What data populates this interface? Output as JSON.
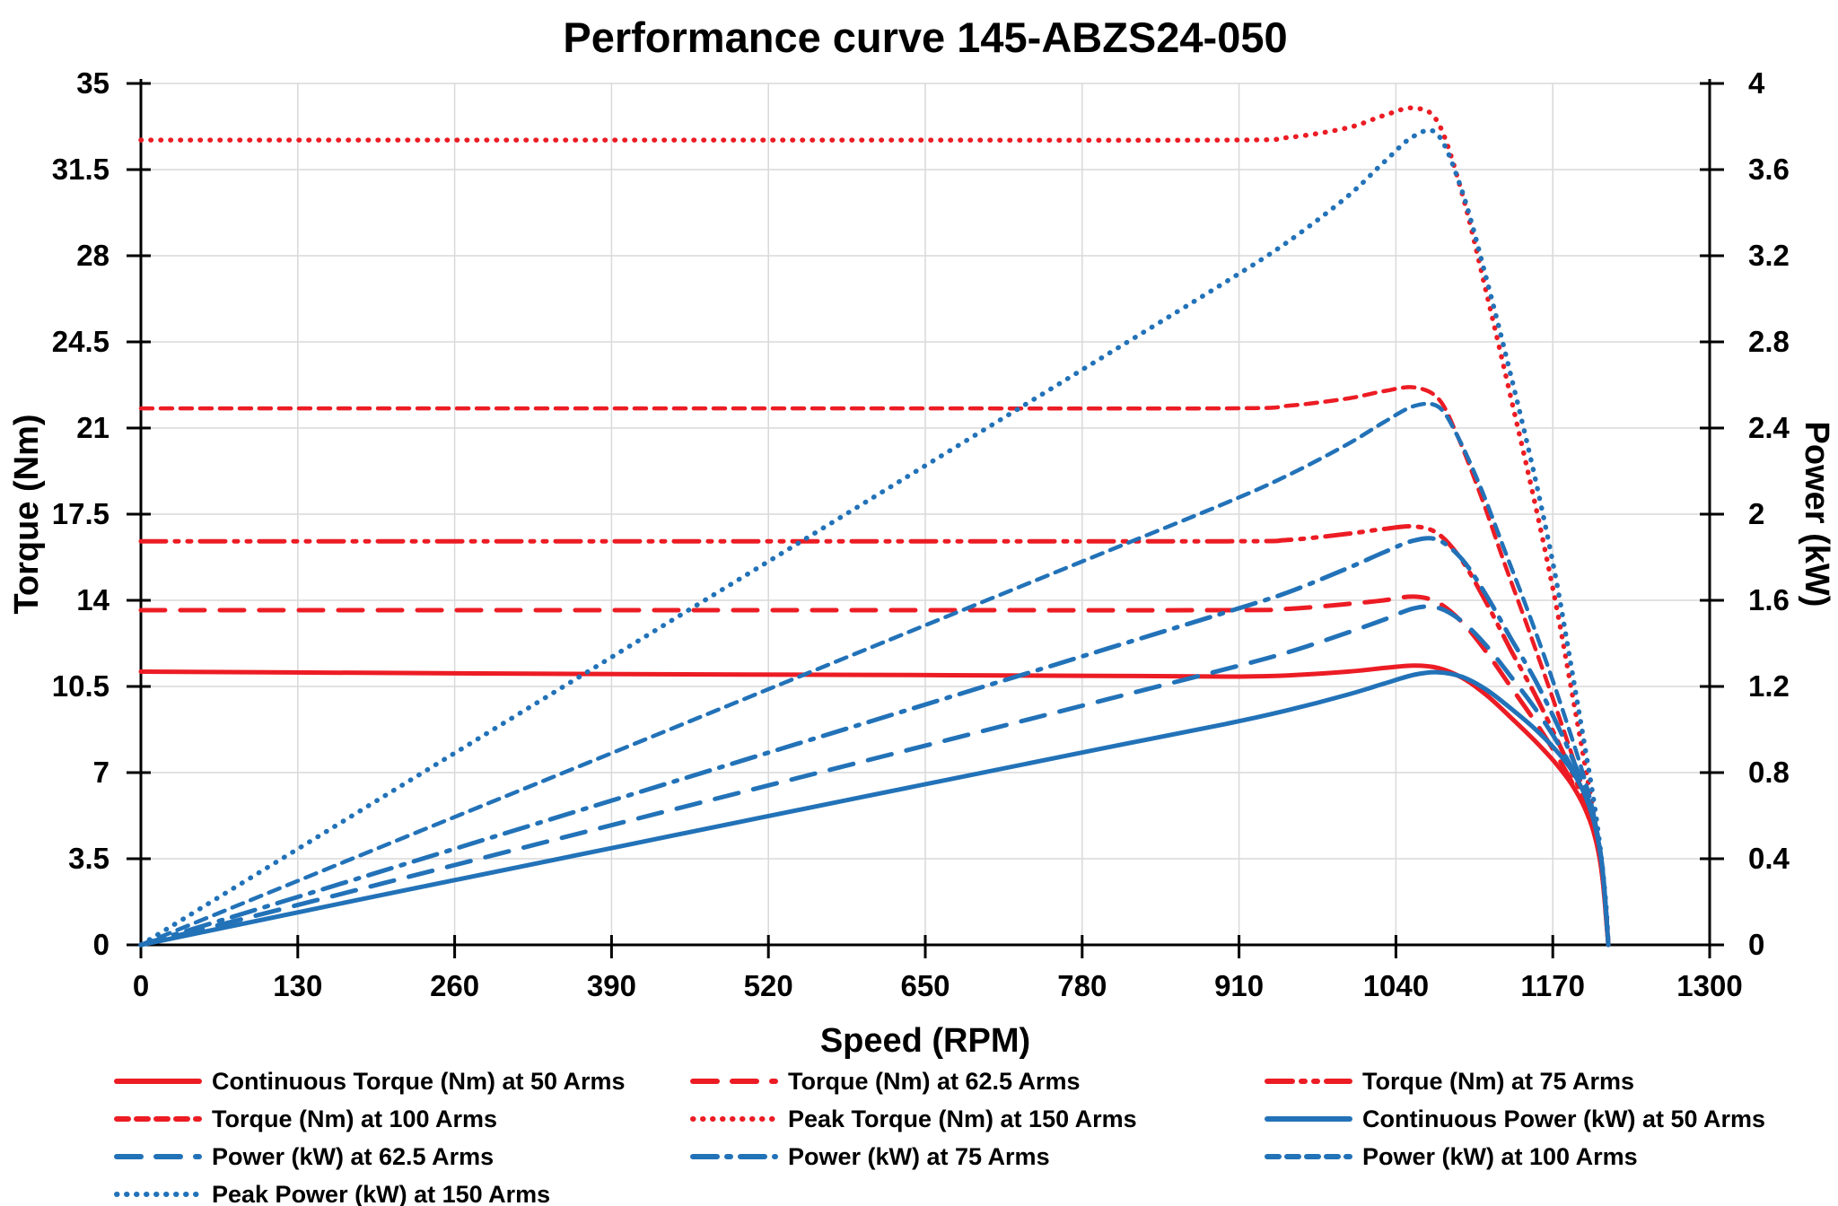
{
  "title": "Performance curve 145-ABZS24-050",
  "x_axis": {
    "label": "Speed (RPM)",
    "ticks": [
      "0",
      "130",
      "260",
      "390",
      "520",
      "650",
      "780",
      "910",
      "1040",
      "1170",
      "1300"
    ]
  },
  "y_left": {
    "label": "Torque (Nm)",
    "ticks": [
      "0",
      "3.5",
      "7",
      "10.5",
      "14",
      "17.5",
      "21",
      "24.5",
      "28",
      "31.5",
      "35"
    ]
  },
  "y_right": {
    "label": "Power (kW)",
    "ticks": [
      "0",
      "0.4",
      "0.8",
      "1.2",
      "1.6",
      "2",
      "2.4",
      "2.8",
      "3.2",
      "3.6",
      "4"
    ]
  },
  "colors": {
    "red": "#ec1c24",
    "blue": "#2272b8",
    "grid": "#d9d9d9",
    "axis": "#000000",
    "text": "#000000",
    "background": "#ffffff"
  },
  "chart_data": {
    "type": "line",
    "title": "Performance curve 145-ABZS24-050",
    "xlabel": "Speed (RPM)",
    "ylabel_left": "Torque (Nm)",
    "ylabel_right": "Power (kW)",
    "xlim": [
      0,
      1300
    ],
    "ylim_left": [
      0,
      35
    ],
    "ylim_right": [
      0,
      4
    ],
    "grid": true,
    "legend_position": "bottom",
    "series": [
      {
        "id": "peak-torque-150",
        "name": "Peak Torque (Nm) at 150 Arms",
        "axis": "left",
        "color": "red",
        "dash": "dot",
        "legend_pos": [
          1,
          1
        ],
        "points": [
          [
            0,
            32.7
          ],
          [
            300,
            32.7
          ],
          [
            600,
            32.7
          ],
          [
            900,
            32.7
          ],
          [
            950,
            32.8
          ],
          [
            1000,
            33.2
          ],
          [
            1030,
            33.7
          ],
          [
            1055,
            34.0
          ],
          [
            1075,
            33.4
          ],
          [
            1095,
            30.5
          ],
          [
            1115,
            26.5
          ],
          [
            1135,
            22.3
          ],
          [
            1155,
            18.0
          ],
          [
            1172,
            14.0
          ],
          [
            1185,
            10.5
          ],
          [
            1196,
            7.5
          ],
          [
            1204,
            5.3
          ],
          [
            1210,
            3.3
          ],
          [
            1214,
            1.5
          ],
          [
            1216,
            0
          ]
        ]
      },
      {
        "id": "torque-100",
        "name": "Torque (Nm) at 100 Arms",
        "axis": "left",
        "color": "red",
        "dash": "short-dash",
        "legend_pos": [
          1,
          0
        ],
        "points": [
          [
            0,
            21.8
          ],
          [
            300,
            21.8
          ],
          [
            600,
            21.8
          ],
          [
            900,
            21.8
          ],
          [
            950,
            21.9
          ],
          [
            1000,
            22.2
          ],
          [
            1030,
            22.5
          ],
          [
            1055,
            22.65
          ],
          [
            1075,
            22.2
          ],
          [
            1090,
            20.8
          ],
          [
            1110,
            18.3
          ],
          [
            1130,
            15.5
          ],
          [
            1150,
            12.8
          ],
          [
            1168,
            10.3
          ],
          [
            1184,
            8.0
          ],
          [
            1196,
            6.2
          ],
          [
            1204,
            4.8
          ],
          [
            1210,
            3.2
          ],
          [
            1214,
            1.4
          ],
          [
            1216,
            0
          ]
        ]
      },
      {
        "id": "torque-75",
        "name": "Torque (Nm) at 75 Arms",
        "axis": "left",
        "color": "red",
        "dash": "dash-dot-dot",
        "legend_pos": [
          0,
          2
        ],
        "points": [
          [
            0,
            16.4
          ],
          [
            300,
            16.4
          ],
          [
            600,
            16.4
          ],
          [
            900,
            16.4
          ],
          [
            950,
            16.45
          ],
          [
            1000,
            16.7
          ],
          [
            1030,
            16.9
          ],
          [
            1055,
            17.0
          ],
          [
            1075,
            16.7
          ],
          [
            1095,
            15.6
          ],
          [
            1115,
            13.9
          ],
          [
            1135,
            12.0
          ],
          [
            1155,
            10.2
          ],
          [
            1172,
            8.5
          ],
          [
            1186,
            7.0
          ],
          [
            1198,
            5.6
          ],
          [
            1206,
            4.3
          ],
          [
            1211,
            2.9
          ],
          [
            1214,
            1.3
          ],
          [
            1216,
            0
          ]
        ]
      },
      {
        "id": "torque-62-5",
        "name": "Torque (Nm) at 62.5 Arms",
        "axis": "left",
        "color": "red",
        "dash": "long-dash",
        "legend_pos": [
          0,
          1
        ],
        "points": [
          [
            0,
            13.6
          ],
          [
            300,
            13.6
          ],
          [
            600,
            13.6
          ],
          [
            900,
            13.6
          ],
          [
            950,
            13.65
          ],
          [
            1000,
            13.85
          ],
          [
            1030,
            14.0
          ],
          [
            1055,
            14.15
          ],
          [
            1075,
            13.9
          ],
          [
            1095,
            13.1
          ],
          [
            1115,
            11.9
          ],
          [
            1135,
            10.5
          ],
          [
            1155,
            9.1
          ],
          [
            1172,
            7.8
          ],
          [
            1186,
            6.6
          ],
          [
            1198,
            5.4
          ],
          [
            1206,
            4.2
          ],
          [
            1211,
            2.8
          ],
          [
            1214,
            1.2
          ],
          [
            1216,
            0
          ]
        ]
      },
      {
        "id": "continuous-torque-50",
        "name": "Continuous Torque (Nm) at 50 Arms",
        "axis": "left",
        "color": "red",
        "dash": "solid",
        "legend_pos": [
          0,
          0
        ],
        "points": [
          [
            0,
            11.1
          ],
          [
            200,
            11.05
          ],
          [
            400,
            11.0
          ],
          [
            600,
            10.97
          ],
          [
            800,
            10.93
          ],
          [
            900,
            10.9
          ],
          [
            950,
            10.95
          ],
          [
            1000,
            11.1
          ],
          [
            1030,
            11.25
          ],
          [
            1055,
            11.35
          ],
          [
            1075,
            11.25
          ],
          [
            1095,
            10.85
          ],
          [
            1115,
            10.15
          ],
          [
            1135,
            9.25
          ],
          [
            1155,
            8.3
          ],
          [
            1172,
            7.4
          ],
          [
            1186,
            6.5
          ],
          [
            1198,
            5.4
          ],
          [
            1206,
            4.2
          ],
          [
            1211,
            2.8
          ],
          [
            1214,
            1.2
          ],
          [
            1216,
            0
          ]
        ]
      },
      {
        "id": "peak-power-150",
        "name": "Peak  Power (kW) at 150 Arms",
        "axis": "right",
        "color": "blue",
        "dash": "dot",
        "legend_pos": [
          3,
          0
        ],
        "points": [
          [
            0,
            0
          ],
          [
            200,
            0.685
          ],
          [
            400,
            1.37
          ],
          [
            600,
            2.054
          ],
          [
            800,
            2.739
          ],
          [
            900,
            3.082
          ],
          [
            950,
            3.263
          ],
          [
            1000,
            3.476
          ],
          [
            1030,
            3.634
          ],
          [
            1055,
            3.756
          ],
          [
            1075,
            3.76
          ],
          [
            1095,
            3.497
          ],
          [
            1115,
            3.094
          ],
          [
            1135,
            2.651
          ],
          [
            1155,
            2.177
          ],
          [
            1172,
            1.718
          ],
          [
            1185,
            1.302
          ],
          [
            1196,
            0.939
          ],
          [
            1204,
            0.668
          ],
          [
            1210,
            0.418
          ],
          [
            1214,
            0.191
          ],
          [
            1216,
            0
          ]
        ]
      },
      {
        "id": "power-100",
        "name": "Power (kW) at 100 Arms",
        "axis": "right",
        "color": "blue",
        "dash": "short-dash",
        "legend_pos": [
          2,
          2
        ],
        "points": [
          [
            0,
            0
          ],
          [
            200,
            0.457
          ],
          [
            400,
            0.913
          ],
          [
            600,
            1.37
          ],
          [
            800,
            1.826
          ],
          [
            900,
            2.054
          ],
          [
            950,
            2.179
          ],
          [
            1000,
            2.325
          ],
          [
            1030,
            2.427
          ],
          [
            1055,
            2.502
          ],
          [
            1075,
            2.499
          ],
          [
            1090,
            2.374
          ],
          [
            1110,
            2.127
          ],
          [
            1130,
            1.834
          ],
          [
            1150,
            1.541
          ],
          [
            1168,
            1.26
          ],
          [
            1184,
            0.992
          ],
          [
            1196,
            0.777
          ],
          [
            1204,
            0.605
          ],
          [
            1210,
            0.405
          ],
          [
            1214,
            0.178
          ],
          [
            1216,
            0
          ]
        ]
      },
      {
        "id": "power-75",
        "name": "Power (kW) at 75 Arms",
        "axis": "right",
        "color": "blue",
        "dash": "dash-dot",
        "legend_pos": [
          2,
          1
        ],
        "points": [
          [
            0,
            0
          ],
          [
            200,
            0.343
          ],
          [
            400,
            0.687
          ],
          [
            600,
            1.03
          ],
          [
            800,
            1.374
          ],
          [
            900,
            1.546
          ],
          [
            950,
            1.636
          ],
          [
            1000,
            1.749
          ],
          [
            1030,
            1.823
          ],
          [
            1055,
            1.878
          ],
          [
            1075,
            1.88
          ],
          [
            1095,
            1.789
          ],
          [
            1115,
            1.623
          ],
          [
            1135,
            1.426
          ],
          [
            1155,
            1.234
          ],
          [
            1172,
            1.043
          ],
          [
            1186,
            0.87
          ],
          [
            1198,
            0.703
          ],
          [
            1206,
            0.543
          ],
          [
            1211,
            0.368
          ],
          [
            1214,
            0.165
          ],
          [
            1216,
            0
          ]
        ]
      },
      {
        "id": "power-62-5",
        "name": "Power (kW) at 62.5 Arms",
        "axis": "right",
        "color": "blue",
        "dash": "long-dash",
        "legend_pos": [
          2,
          0
        ],
        "points": [
          [
            0,
            0
          ],
          [
            200,
            0.285
          ],
          [
            400,
            0.57
          ],
          [
            600,
            0.854
          ],
          [
            800,
            1.139
          ],
          [
            900,
            1.282
          ],
          [
            950,
            1.358
          ],
          [
            1000,
            1.45
          ],
          [
            1030,
            1.51
          ],
          [
            1055,
            1.563
          ],
          [
            1075,
            1.565
          ],
          [
            1095,
            1.501
          ],
          [
            1115,
            1.389
          ],
          [
            1135,
            1.248
          ],
          [
            1155,
            1.101
          ],
          [
            1172,
            0.957
          ],
          [
            1186,
            0.82
          ],
          [
            1198,
            0.678
          ],
          [
            1206,
            0.531
          ],
          [
            1211,
            0.359
          ],
          [
            1214,
            0.163
          ],
          [
            1216,
            0
          ]
        ]
      },
      {
        "id": "continuous-power-50",
        "name": "Continuous Power (kW) at 50 Arms",
        "axis": "right",
        "color": "blue",
        "dash": "solid",
        "legend_pos": [
          1,
          2
        ],
        "points": [
          [
            0,
            0
          ],
          [
            200,
            0.232
          ],
          [
            400,
            0.461
          ],
          [
            600,
            0.689
          ],
          [
            800,
            0.916
          ],
          [
            900,
            1.027
          ],
          [
            950,
            1.089
          ],
          [
            1000,
            1.162
          ],
          [
            1030,
            1.213
          ],
          [
            1055,
            1.254
          ],
          [
            1075,
            1.266
          ],
          [
            1095,
            1.244
          ],
          [
            1115,
            1.185
          ],
          [
            1135,
            1.099
          ],
          [
            1155,
            1.004
          ],
          [
            1172,
            0.908
          ],
          [
            1186,
            0.808
          ],
          [
            1198,
            0.678
          ],
          [
            1206,
            0.531
          ],
          [
            1211,
            0.359
          ],
          [
            1214,
            0.163
          ],
          [
            1216,
            0
          ]
        ]
      }
    ]
  }
}
